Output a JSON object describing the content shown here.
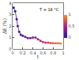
{
  "chart_data": {
    "type": "line",
    "x_label": "t",
    "y_label": "ΔE (%)",
    "annotations": [
      "T = 18 °C"
    ],
    "x": [
      0.02,
      0.05,
      0.08,
      0.1,
      0.13,
      0.16,
      0.2,
      0.25,
      0.3,
      0.35,
      0.4,
      0.45,
      0.5,
      0.55,
      0.6,
      0.65,
      0.7,
      0.75,
      0.8,
      0.85,
      0.9,
      0.95
    ],
    "values": [
      3.6,
      3.3,
      2.6,
      2.0,
      1.5,
      1.25,
      1.15,
      1.05,
      0.95,
      0.95,
      1.0,
      1.0,
      0.85,
      0.7,
      0.6,
      0.55,
      0.55,
      0.52,
      0.5,
      0.5,
      0.5,
      0.48
    ],
    "color_values": [
      0.02,
      0.05,
      0.08,
      0.1,
      0.13,
      0.16,
      0.2,
      0.25,
      0.3,
      0.35,
      0.4,
      0.45,
      0.5,
      0.55,
      0.6,
      0.65,
      0.7,
      0.75,
      0.8,
      0.85,
      0.9,
      0.95
    ],
    "colorbar": {
      "range": [
        0,
        1
      ],
      "ticks": [
        0,
        0.5,
        1
      ]
    },
    "xlim": [
      0,
      1
    ],
    "xticks": [
      0,
      0.2,
      0.4,
      0.6,
      0.8,
      1
    ],
    "ylim": [
      0,
      4
    ],
    "yticks": [
      0,
      1,
      2,
      3,
      4
    ],
    "grid": false
  }
}
